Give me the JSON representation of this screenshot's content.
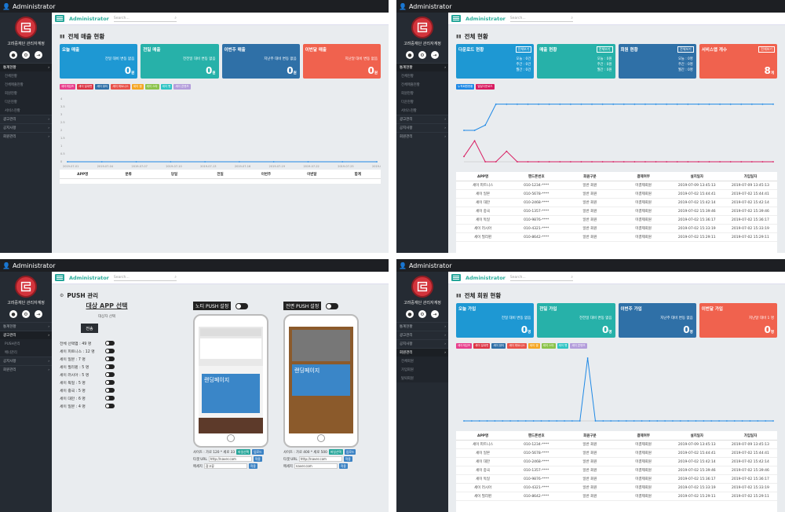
{
  "common": {
    "user": "Administrator",
    "admin": "Administrator",
    "search_placeholder": "Search...",
    "org": "고려중재단 관리자계정",
    "nav": {
      "stats": "통계현황",
      "stats_all": "전체현황",
      "stats_sales": "전체매출현황",
      "stats_members": "회원현황",
      "stats_down": "다운현황",
      "stats_service": "서비스현황",
      "ads": "광고관리",
      "ads_push": "PUSH관리",
      "ads_banner": "배너관리",
      "notice": "공지사항",
      "members": "회원관리",
      "members_list": "전체회원",
      "members_join": "가입회원",
      "members_leave": "탈퇴회원"
    }
  },
  "p1": {
    "title": "전체 매출 현황",
    "cards": [
      {
        "title": "오늘 매출",
        "sub": "전일 대비 변동 없음",
        "value": "0",
        "unit": "원",
        "color": "#1e98d3"
      },
      {
        "title": "전일 매출",
        "sub": "전전일 대비 변동 없음",
        "value": "0",
        "unit": "원",
        "color": "#27b1a9"
      },
      {
        "title": "이번주 매출",
        "sub": "지난주 대비 변동 없음",
        "value": "0",
        "unit": "원",
        "color": "#2f70a7"
      },
      {
        "title": "이번달 매출",
        "sub": "지난달 대비 변동 없음",
        "value": "0",
        "unit": "원",
        "color": "#f0624e"
      }
    ],
    "legend": [
      {
        "label": "세이게임즈",
        "color": "#e83e8c"
      },
      {
        "label": "세이 일대면",
        "color": "#dc3545"
      },
      {
        "label": "세이 뷰티",
        "color": "#2f70a7"
      },
      {
        "label": "세이 피트니스",
        "color": "#e8524a"
      },
      {
        "label": "세이 캠",
        "color": "#f5a623"
      },
      {
        "label": "세이 스타",
        "color": "#8bc34a"
      },
      {
        "label": "세이 펫",
        "color": "#2ec4c4"
      },
      {
        "label": "세이 콘텐츠",
        "color": "#b39ddb"
      }
    ],
    "table_headers": [
      "APP명",
      "분류",
      "당일",
      "전일",
      "이번주",
      "이번달",
      "합계"
    ]
  },
  "p2": {
    "title": "전체 현황",
    "cards": [
      {
        "title": "다운로드 현황",
        "lines": [
          "오늘 : 0건",
          "주간 : 0건",
          "월간 : 0건"
        ],
        "btn": "전체보기",
        "color": "#1e98d3"
      },
      {
        "title": "매출 현황",
        "lines": [
          "오늘 : 0원",
          "주간 : 0원",
          "월간 : 0원"
        ],
        "btn": "전체보기",
        "color": "#27b1a9"
      },
      {
        "title": "회원 현황",
        "lines": [
          "오늘 : 0명",
          "주간 : 0명",
          "월간 : 0명"
        ],
        "btn": "전체보기",
        "color": "#2f70a7"
      },
      {
        "title": "서비스앱 개수",
        "value": "8",
        "unit": "개",
        "btn": "전체보기",
        "color": "#f0624e"
      }
    ],
    "legend": [
      {
        "label": "누적회원현황",
        "color": "#1e88e5"
      },
      {
        "label": "일일다운로드",
        "color": "#d81b60"
      }
    ],
    "table_headers": [
      "APP명",
      "핸드폰번호",
      "회원구분",
      "결제여부",
      "설치일자",
      "가입일자"
    ],
    "rows": [
      [
        "세이 피트니스",
        "010-1234-****",
        "일반 회원",
        "미결제회원",
        "2019-07-09 13:45:13",
        "2019-07-09 13:45:13"
      ],
      [
        "세이 일본",
        "010-5678-****",
        "일반 회원",
        "미결제회원",
        "2019-07-02 15:44:41",
        "2019-07-02 15:44:41"
      ],
      [
        "세이 대만",
        "010-2468-****",
        "일반 회원",
        "미결제회원",
        "2019-07-02 15:42:14",
        "2019-07-02 15:42:14"
      ],
      [
        "세이 중국",
        "010-1357-****",
        "일반 회원",
        "미결제회원",
        "2019-07-02 15:39:46",
        "2019-07-02 15:39:46"
      ],
      [
        "세이 독일",
        "010-9876-****",
        "일반 회원",
        "미결제회원",
        "2019-07-02 15:36:17",
        "2019-07-02 15:36:17"
      ],
      [
        "세이 러시아",
        "010-4321-****",
        "일반 회원",
        "미결제회원",
        "2019-07-02 15:33:19",
        "2019-07-02 15:33:19"
      ],
      [
        "세이 필리핀",
        "010-8642-****",
        "일반 회원",
        "미결제회원",
        "2019-07-02 15:29:11",
        "2019-07-02 15:29:11"
      ]
    ]
  },
  "p3": {
    "title": "PUSH 관리",
    "select_title": "대상 APP 선택",
    "select_sub": "대상자 선택",
    "send": "전송",
    "apps": [
      "전체 선택앱 : 49 명",
      "세이 피트니스 : 12 명",
      "세이 일본 : 7 명",
      "세이 필리핀 : 5 명",
      "세이 러시아 : 5 명",
      "세이 독일 : 5 명",
      "세이 중국 : 5 명",
      "세이 대만 : 6 명",
      "세이 일본 : 4 명"
    ],
    "noti_title": "노티 PUSH 설정",
    "full_title": "전면 PUSH 설정",
    "landing": "랜딩페이지",
    "noti_fields": {
      "size": "사이즈 : 가로 120 * 세로 33",
      "url_label": "타겟 URL",
      "url": "http://naver.com",
      "msg_label": "메세지",
      "msg": "광고류"
    },
    "full_fields": {
      "size": "사이즈 : 가로 400 * 세로 500",
      "url_label": "타겟 URL",
      "url": "http://naver.com",
      "msg_label": "메세지",
      "msg": "naver.com"
    },
    "btn_select": "파일선택",
    "btn_upload": "업로드",
    "btn_apply": "적용"
  },
  "p4": {
    "title": "전체 회원 현황",
    "cards": [
      {
        "title": "오늘 가입",
        "sub": "전일 대비 변동 없음",
        "value": "0",
        "unit": "명",
        "color": "#1e98d3"
      },
      {
        "title": "전일 가입",
        "sub": "전전일 대비 변동 없음",
        "value": "0",
        "unit": "명",
        "color": "#27b1a9"
      },
      {
        "title": "이번주 가입",
        "sub": "지난주 대비 변동 없음",
        "value": "0",
        "unit": "명",
        "color": "#2f70a7"
      },
      {
        "title": "이번달 가입",
        "sub": "지난달 대비 1 명",
        "value": "0",
        "unit": "명",
        "color": "#f0624e"
      }
    ]
  },
  "chart_data": [
    {
      "type": "line",
      "panel": "p1",
      "x": [
        "2019-07-01",
        "2019-07-04",
        "2019-07-07",
        "2019-07-10",
        "2019-07-13",
        "2019-07-16",
        "2019-07-19",
        "2019-07-22",
        "2019-07-25",
        "2019-07-28"
      ],
      "ylim": [
        0,
        4
      ],
      "yticks": [
        "4",
        "3.5",
        "3",
        "2.5",
        "2",
        "1.5",
        "1",
        "0.5",
        "0"
      ],
      "series": [
        {
          "values": [
            0,
            0,
            0,
            0,
            0,
            0,
            0,
            0,
            0,
            0
          ]
        }
      ]
    },
    {
      "type": "line",
      "panel": "p2",
      "series": [
        {
          "name": "누적회원현황",
          "color": "#1e88e5",
          "values": [
            6,
            6,
            7,
            11,
            11,
            11,
            11,
            11,
            11,
            11,
            11,
            11,
            11,
            11,
            11,
            11,
            11,
            11,
            11,
            11,
            11,
            11,
            11,
            11,
            11,
            11,
            11,
            11,
            11,
            11
          ]
        },
        {
          "name": "일일다운로드",
          "color": "#d81b60",
          "values": [
            1,
            4,
            0,
            0,
            2,
            0,
            0,
            0,
            0,
            0,
            0,
            0,
            0,
            0,
            0,
            0,
            0,
            0,
            0,
            0,
            0,
            0,
            0,
            0,
            0,
            0,
            0,
            0,
            0,
            0
          ]
        }
      ]
    },
    {
      "type": "line",
      "panel": "p4",
      "ylim": [
        0,
        4
      ],
      "series": [
        {
          "values": [
            0,
            0,
            0,
            0,
            0,
            0,
            0,
            0,
            0,
            0,
            0,
            0,
            0,
            0,
            0,
            0,
            4,
            0,
            0,
            0,
            0,
            0,
            0,
            0,
            0,
            0,
            0,
            0,
            0,
            0,
            0,
            0,
            0,
            0,
            0,
            0,
            0,
            0,
            0,
            0,
            0
          ]
        }
      ]
    }
  ]
}
